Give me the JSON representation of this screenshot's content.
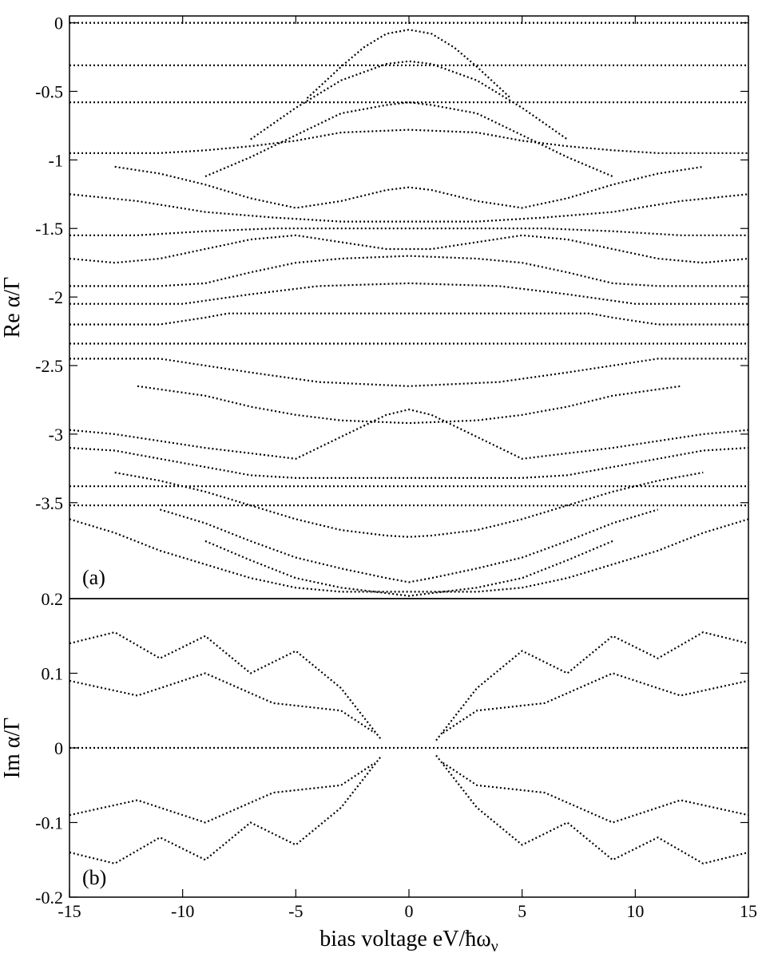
{
  "chart_data": [
    {
      "type": "scatter",
      "panel_label": "(a)",
      "ylabel": "Re α/Γ",
      "xlim": [
        -15,
        15
      ],
      "ylim": [
        -4.2,
        0.05
      ],
      "y_ticks": [
        0,
        -0.5,
        -1,
        -1.5,
        -2,
        -2.5,
        -3,
        -3.5
      ],
      "y_tick_labels": [
        "0",
        "-0.5",
        "-1",
        "-1.5",
        "-2",
        "-2.5",
        "-3",
        "-3.5"
      ],
      "bottom_tick_label": "0.2",
      "grid": false,
      "series": [
        {
          "x": [
            -15,
            15
          ],
          "y": [
            0,
            0
          ]
        },
        {
          "x": [
            -15,
            15
          ],
          "y": [
            -0.31,
            -0.31
          ]
        },
        {
          "x": [
            -15,
            15
          ],
          "y": [
            -0.58,
            -0.58
          ]
        },
        {
          "x": [
            -15,
            15
          ],
          "y": [
            -2.34,
            -2.34
          ]
        },
        {
          "x": [
            -15,
            15
          ],
          "y": [
            -3.38,
            -3.38
          ]
        },
        {
          "x": [
            -15,
            15
          ],
          "y": [
            -3.52,
            -3.52
          ]
        },
        {
          "x": [
            -4.5,
            -3,
            -2,
            -1,
            0,
            1,
            2,
            3,
            4.5
          ],
          "y": [
            -0.55,
            -0.32,
            -0.18,
            -0.08,
            -0.05,
            -0.08,
            -0.18,
            -0.32,
            -0.55
          ]
        },
        {
          "x": [
            -7,
            -5,
            -3,
            -1,
            0,
            1,
            3,
            5,
            7
          ],
          "y": [
            -0.85,
            -0.62,
            -0.42,
            -0.3,
            -0.28,
            -0.3,
            -0.42,
            -0.62,
            -0.85
          ]
        },
        {
          "x": [
            -9,
            -7,
            -5,
            -3,
            -1,
            0,
            1,
            3,
            5,
            7,
            9
          ],
          "y": [
            -1.12,
            -0.98,
            -0.82,
            -0.66,
            -0.6,
            -0.58,
            -0.6,
            -0.66,
            -0.82,
            -0.98,
            -1.12
          ]
        },
        {
          "x": [
            -15,
            -13,
            -11,
            -9,
            -7,
            -5,
            -3,
            0,
            3,
            5,
            7,
            9,
            11,
            13,
            15
          ],
          "y": [
            -0.95,
            -0.95,
            -0.95,
            -0.93,
            -0.9,
            -0.86,
            -0.8,
            -0.78,
            -0.8,
            -0.86,
            -0.9,
            -0.93,
            -0.95,
            -0.95,
            -0.95
          ]
        },
        {
          "x": [
            -13,
            -11,
            -9,
            -7,
            -5,
            -3,
            -1,
            0,
            1,
            3,
            5,
            7,
            9,
            11,
            13
          ],
          "y": [
            -1.05,
            -1.1,
            -1.18,
            -1.28,
            -1.35,
            -1.3,
            -1.22,
            -1.2,
            -1.22,
            -1.3,
            -1.35,
            -1.28,
            -1.18,
            -1.1,
            -1.05
          ]
        },
        {
          "x": [
            -15,
            -12,
            -9,
            -6,
            -3,
            0,
            3,
            6,
            9,
            12,
            15
          ],
          "y": [
            -1.25,
            -1.3,
            -1.38,
            -1.42,
            -1.45,
            -1.45,
            -1.45,
            -1.42,
            -1.38,
            -1.3,
            -1.25
          ]
        },
        {
          "x": [
            -15,
            -12,
            -9,
            -6,
            -3,
            0,
            3,
            6,
            9,
            12,
            15
          ],
          "y": [
            -1.55,
            -1.55,
            -1.52,
            -1.5,
            -1.5,
            -1.5,
            -1.5,
            -1.5,
            -1.52,
            -1.55,
            -1.55
          ]
        },
        {
          "x": [
            -15,
            -13,
            -11,
            -9,
            -7,
            -5,
            -3,
            -1,
            0,
            1,
            3,
            5,
            7,
            9,
            11,
            13,
            15
          ],
          "y": [
            -1.72,
            -1.75,
            -1.72,
            -1.65,
            -1.58,
            -1.55,
            -1.6,
            -1.65,
            -1.65,
            -1.65,
            -1.6,
            -1.55,
            -1.58,
            -1.65,
            -1.72,
            -1.75,
            -1.72
          ]
        },
        {
          "x": [
            -15,
            -11,
            -9,
            -7,
            -5,
            -3,
            0,
            3,
            5,
            7,
            9,
            11,
            15
          ],
          "y": [
            -1.92,
            -1.92,
            -1.9,
            -1.82,
            -1.75,
            -1.72,
            -1.7,
            -1.72,
            -1.75,
            -1.82,
            -1.9,
            -1.92,
            -1.92
          ]
        },
        {
          "x": [
            -15,
            -10,
            -7,
            -4,
            0,
            4,
            7,
            10,
            15
          ],
          "y": [
            -2.05,
            -2.05,
            -1.98,
            -1.92,
            -1.9,
            -1.92,
            -1.98,
            -2.05,
            -2.05
          ]
        },
        {
          "x": [
            -15,
            -11,
            -9,
            -8,
            0,
            8,
            9,
            11,
            15
          ],
          "y": [
            -2.2,
            -2.2,
            -2.15,
            -2.12,
            -2.12,
            -2.12,
            -2.15,
            -2.2,
            -2.2
          ]
        },
        {
          "x": [
            -15,
            -11,
            -9,
            -7,
            -4,
            0,
            4,
            7,
            9,
            11,
            15
          ],
          "y": [
            -2.45,
            -2.45,
            -2.5,
            -2.55,
            -2.62,
            -2.65,
            -2.62,
            -2.55,
            -2.5,
            -2.45,
            -2.45
          ]
        },
        {
          "x": [
            -12,
            -9,
            -7,
            -5,
            -3,
            0,
            3,
            5,
            7,
            9,
            12
          ],
          "y": [
            -2.65,
            -2.72,
            -2.8,
            -2.86,
            -2.9,
            -2.92,
            -2.9,
            -2.86,
            -2.8,
            -2.72,
            -2.65
          ]
        },
        {
          "x": [
            -15,
            -13,
            -11,
            -9,
            -7,
            -5,
            -3,
            -1,
            0,
            1,
            3,
            5,
            7,
            9,
            11,
            13,
            15
          ],
          "y": [
            -2.97,
            -3.0,
            -3.05,
            -3.1,
            -3.14,
            -3.18,
            -3.02,
            -2.86,
            -2.82,
            -2.86,
            -3.02,
            -3.18,
            -3.14,
            -3.1,
            -3.05,
            -3.0,
            -2.97
          ]
        },
        {
          "x": [
            -15,
            -13,
            -11,
            -9,
            -7,
            -5,
            -3,
            0,
            3,
            5,
            7,
            9,
            11,
            13,
            15
          ],
          "y": [
            -3.1,
            -3.12,
            -3.18,
            -3.24,
            -3.3,
            -3.32,
            -3.32,
            -3.32,
            -3.32,
            -3.32,
            -3.3,
            -3.24,
            -3.18,
            -3.12,
            -3.1
          ]
        },
        {
          "x": [
            -13,
            -11,
            -9,
            -7,
            -5,
            -3,
            -1,
            0,
            1,
            3,
            5,
            7,
            9,
            11,
            13
          ],
          "y": [
            -3.28,
            -3.34,
            -3.42,
            -3.52,
            -3.62,
            -3.7,
            -3.74,
            -3.75,
            -3.74,
            -3.7,
            -3.62,
            -3.52,
            -3.42,
            -3.34,
            -3.28
          ]
        },
        {
          "x": [
            -11,
            -9,
            -7,
            -5,
            -3,
            -1,
            0,
            1,
            3,
            5,
            7,
            9,
            11
          ],
          "y": [
            -3.55,
            -3.65,
            -3.78,
            -3.9,
            -3.98,
            -4.05,
            -4.08,
            -4.05,
            -3.98,
            -3.9,
            -3.78,
            -3.65,
            -3.55
          ]
        },
        {
          "x": [
            -9,
            -7,
            -5,
            -3,
            -1,
            0,
            1,
            3,
            5,
            7,
            9
          ],
          "y": [
            -3.78,
            -3.92,
            -4.05,
            -4.12,
            -4.16,
            -4.18,
            -4.16,
            -4.12,
            -4.05,
            -3.92,
            -3.78
          ]
        },
        {
          "x": [
            -15,
            -13,
            -11,
            -9,
            -7,
            -5,
            -3,
            0,
            3,
            5,
            7,
            9,
            11,
            13,
            15
          ],
          "y": [
            -3.62,
            -3.72,
            -3.85,
            -3.95,
            -4.05,
            -4.12,
            -4.15,
            -4.15,
            -4.15,
            -4.12,
            -4.05,
            -3.95,
            -3.85,
            -3.72,
            -3.62
          ]
        }
      ]
    },
    {
      "type": "scatter",
      "panel_label": "(b)",
      "xlabel": "bias voltage eV/ħω",
      "xlabel_subscript": "ν",
      "ylabel": "Im α/Γ",
      "xlim": [
        -15,
        15
      ],
      "ylim": [
        -0.2,
        0.2
      ],
      "x_ticks": [
        -15,
        -10,
        -5,
        0,
        5,
        10,
        15
      ],
      "x_tick_labels": [
        "-15",
        "-10",
        "-5",
        "0",
        "5",
        "10",
        "15"
      ],
      "y_ticks": [
        0.1,
        0,
        -0.1,
        -0.2
      ],
      "y_tick_labels": [
        "0.1",
        "0",
        "-0.1",
        "-0.2"
      ],
      "grid": false,
      "series": [
        {
          "x": [
            -15,
            15
          ],
          "y": [
            0,
            0
          ]
        },
        {
          "x": [
            -15,
            -13,
            -11,
            -9,
            -7,
            -5,
            -3,
            -1.2
          ],
          "y": [
            0.14,
            0.155,
            0.12,
            0.15,
            0.1,
            0.13,
            0.08,
            0.01
          ]
        },
        {
          "x": [
            -15,
            -13,
            -11,
            -9,
            -7,
            -5,
            -3,
            -1.2
          ],
          "y": [
            -0.14,
            -0.155,
            -0.12,
            -0.15,
            -0.1,
            -0.13,
            -0.08,
            -0.01
          ]
        },
        {
          "x": [
            1.2,
            3,
            5,
            7,
            9,
            11,
            13,
            15
          ],
          "y": [
            0.01,
            0.08,
            0.13,
            0.1,
            0.15,
            0.12,
            0.155,
            0.14
          ]
        },
        {
          "x": [
            1.2,
            3,
            5,
            7,
            9,
            11,
            13,
            15
          ],
          "y": [
            -0.01,
            -0.08,
            -0.13,
            -0.1,
            -0.15,
            -0.12,
            -0.155,
            -0.14
          ]
        },
        {
          "x": [
            -15,
            -12,
            -9,
            -6,
            -3,
            -1.5
          ],
          "y": [
            0.09,
            0.07,
            0.1,
            0.06,
            0.05,
            0.02
          ]
        },
        {
          "x": [
            -15,
            -12,
            -9,
            -6,
            -3,
            -1.5
          ],
          "y": [
            -0.09,
            -0.07,
            -0.1,
            -0.06,
            -0.05,
            -0.02
          ]
        },
        {
          "x": [
            1.5,
            3,
            6,
            9,
            12,
            15
          ],
          "y": [
            0.02,
            0.05,
            0.06,
            0.1,
            0.07,
            0.09
          ]
        },
        {
          "x": [
            1.5,
            3,
            6,
            9,
            12,
            15
          ],
          "y": [
            -0.02,
            -0.05,
            -0.06,
            -0.1,
            -0.07,
            -0.09
          ]
        }
      ]
    }
  ]
}
